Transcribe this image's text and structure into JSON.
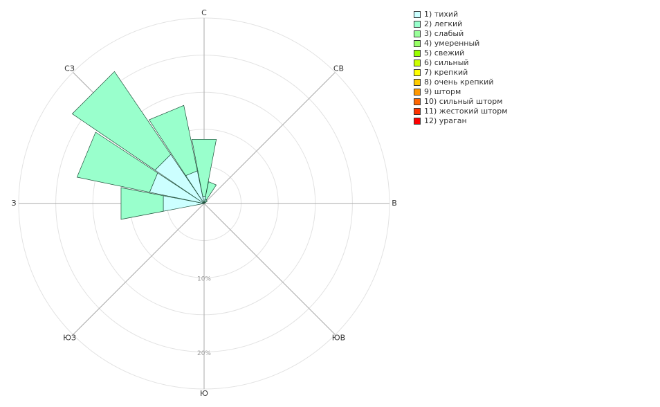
{
  "chart_data": {
    "type": "windrose",
    "directions": [
      "С",
      "СВ",
      "В",
      "ЮВ",
      "Ю",
      "ЮЗ",
      "З",
      "СЗ"
    ],
    "sector_angles_deg": [
      0,
      22.5,
      45,
      67.5,
      90,
      112.5,
      135,
      157.5,
      180,
      202.5,
      225,
      247.5,
      270,
      292.5,
      315,
      337.5
    ],
    "ring_labels": [
      {
        "value": 10,
        "label": "10%"
      },
      {
        "value": 20,
        "label": "20%"
      }
    ],
    "r_step": 5,
    "r_max": 25,
    "series": [
      {
        "name": "1) тихий",
        "color": "#ccffff",
        "values": [
          1.0,
          0.6,
          0.2,
          0.0,
          0.0,
          0.0,
          0.0,
          0.0,
          0.0,
          0.0,
          0.0,
          0.0,
          5.6,
          7.5,
          8.0,
          4.5
        ]
      },
      {
        "name": "2) легкий",
        "color": "#99ffcc",
        "values": [
          7.8,
          2.4,
          0.3,
          0.0,
          0.0,
          0.0,
          0.0,
          0.0,
          0.0,
          0.0,
          0.0,
          0.0,
          5.8,
          10.0,
          13.5,
          9.0
        ]
      },
      {
        "name": "3) слабый",
        "color": "#99ff99",
        "values": []
      },
      {
        "name": "4) умеренный",
        "color": "#99ff66",
        "values": []
      },
      {
        "name": "5) свежий",
        "color": "#99ff00",
        "values": []
      },
      {
        "name": "6) сильный",
        "color": "#ccff00",
        "values": []
      },
      {
        "name": "7) крепкий",
        "color": "#ffff00",
        "values": []
      },
      {
        "name": "8) очень крепкий",
        "color": "#ffcc00",
        "values": []
      },
      {
        "name": "9) шторм",
        "color": "#ff9900",
        "values": []
      },
      {
        "name": "10) сильный шторм",
        "color": "#ff6600",
        "values": []
      },
      {
        "name": "11) жестокий шторм",
        "color": "#ff3300",
        "values": []
      },
      {
        "name": "12) ураган",
        "color": "#ff0000",
        "values": []
      }
    ],
    "legend_position": "top-right",
    "grid": true
  }
}
